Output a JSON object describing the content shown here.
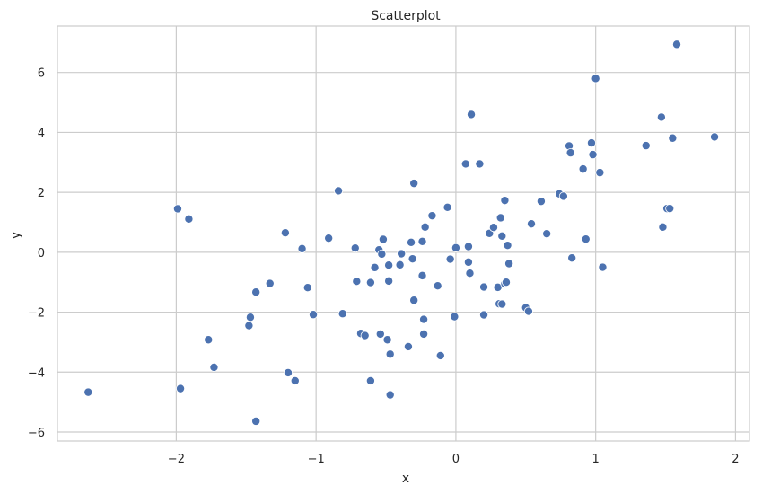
{
  "chart_data": {
    "type": "scatter",
    "title": "Scatterplot",
    "xlabel": "x",
    "ylabel": "y",
    "xlim": [
      -2.85,
      2.1
    ],
    "ylim": [
      -6.3,
      7.55
    ],
    "xticks": [
      -2,
      -1,
      0,
      1,
      2
    ],
    "xtick_labels": [
      "−2",
      "−1",
      "0",
      "1",
      "2"
    ],
    "yticks": [
      -6,
      -4,
      -2,
      0,
      2,
      4,
      6
    ],
    "ytick_labels": [
      "−6",
      "−4",
      "−2",
      "0",
      "2",
      "4",
      "6"
    ],
    "grid": true,
    "point_color": "#4c72b0",
    "points": [
      [
        -2.63,
        -4.67
      ],
      [
        -1.99,
        1.45
      ],
      [
        -1.97,
        -4.55
      ],
      [
        -1.91,
        1.11
      ],
      [
        -1.77,
        -2.92
      ],
      [
        -1.73,
        -3.84
      ],
      [
        -1.48,
        -2.45
      ],
      [
        -1.47,
        -2.17
      ],
      [
        -1.43,
        -1.33
      ],
      [
        -1.43,
        -5.64
      ],
      [
        -1.33,
        -1.04
      ],
      [
        -1.22,
        0.65
      ],
      [
        -1.2,
        -4.02
      ],
      [
        -1.15,
        -4.29
      ],
      [
        -1.1,
        0.12
      ],
      [
        -1.06,
        -1.18
      ],
      [
        -1.02,
        -2.08
      ],
      [
        -0.91,
        0.47
      ],
      [
        -0.84,
        2.05
      ],
      [
        -0.81,
        -2.05
      ],
      [
        -0.72,
        0.14
      ],
      [
        -0.71,
        -0.97
      ],
      [
        -0.68,
        -2.71
      ],
      [
        -0.65,
        -2.78
      ],
      [
        -0.61,
        -1.01
      ],
      [
        -0.61,
        -4.29
      ],
      [
        -0.58,
        -0.51
      ],
      [
        -0.55,
        0.08
      ],
      [
        -0.54,
        -2.73
      ],
      [
        -0.53,
        -0.06
      ],
      [
        -0.52,
        0.43
      ],
      [
        -0.49,
        -2.92
      ],
      [
        -0.48,
        -0.43
      ],
      [
        -0.48,
        -0.96
      ],
      [
        -0.47,
        -3.4
      ],
      [
        -0.47,
        -4.76
      ],
      [
        -0.4,
        -0.42
      ],
      [
        -0.39,
        -0.05
      ],
      [
        -0.34,
        -3.15
      ],
      [
        -0.32,
        0.33
      ],
      [
        -0.31,
        -0.22
      ],
      [
        -0.3,
        2.3
      ],
      [
        -0.3,
        -1.6
      ],
      [
        -0.24,
        0.36
      ],
      [
        -0.24,
        -0.78
      ],
      [
        -0.23,
        -2.73
      ],
      [
        -0.23,
        -2.24
      ],
      [
        -0.22,
        0.84
      ],
      [
        -0.17,
        1.22
      ],
      [
        -0.13,
        -1.12
      ],
      [
        -0.11,
        -3.45
      ],
      [
        -0.06,
        1.5
      ],
      [
        -0.04,
        -0.23
      ],
      [
        -0.01,
        -2.15
      ],
      [
        0.0,
        0.15
      ],
      [
        0.07,
        2.95
      ],
      [
        0.09,
        0.19
      ],
      [
        0.09,
        -0.33
      ],
      [
        0.1,
        -0.7
      ],
      [
        0.11,
        4.6
      ],
      [
        0.17,
        2.95
      ],
      [
        0.2,
        -1.16
      ],
      [
        0.2,
        -2.09
      ],
      [
        0.24,
        0.63
      ],
      [
        0.27,
        0.83
      ],
      [
        0.3,
        -1.17
      ],
      [
        0.31,
        -1.72
      ],
      [
        0.32,
        1.15
      ],
      [
        0.33,
        -1.73
      ],
      [
        0.33,
        0.54
      ],
      [
        0.35,
        1.73
      ],
      [
        0.35,
        -1.05
      ],
      [
        0.36,
        -1.0
      ],
      [
        0.37,
        0.23
      ],
      [
        0.38,
        -0.38
      ],
      [
        0.5,
        -1.85
      ],
      [
        0.52,
        -1.97
      ],
      [
        0.54,
        0.95
      ],
      [
        0.61,
        1.7
      ],
      [
        0.65,
        0.62
      ],
      [
        0.74,
        1.95
      ],
      [
        0.77,
        1.87
      ],
      [
        0.81,
        3.55
      ],
      [
        0.82,
        3.32
      ],
      [
        0.83,
        -0.19
      ],
      [
        0.91,
        2.78
      ],
      [
        0.93,
        0.44
      ],
      [
        0.97,
        3.65
      ],
      [
        0.98,
        3.26
      ],
      [
        1.0,
        5.8
      ],
      [
        1.03,
        2.66
      ],
      [
        1.05,
        -0.5
      ],
      [
        1.36,
        3.56
      ],
      [
        1.47,
        4.51
      ],
      [
        1.48,
        0.84
      ],
      [
        1.51,
        1.46
      ],
      [
        1.53,
        1.46
      ],
      [
        1.55,
        3.81
      ],
      [
        1.58,
        6.94
      ],
      [
        1.85,
        3.85
      ]
    ]
  }
}
